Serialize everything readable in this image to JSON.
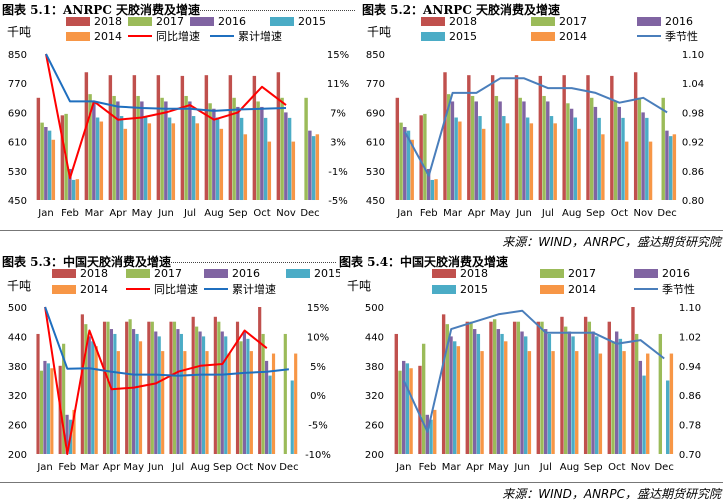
{
  "titles": {
    "c1": "图表 5.1：ANRPC 天胶消费及增速",
    "c2": "图表 5.2：ANRPC 天胶消费及增速",
    "c3": "图表 5.3：中国天胶消费及增速",
    "c4": "图表 5.4：中国天胶消费及增速"
  },
  "source": "来源：WIND，ANRPC，盛达期货研究院",
  "colors": {
    "2018": "#c0504d",
    "2017": "#9bbb59",
    "2016": "#8064a2",
    "2015": "#4bacc6",
    "2014": "#f79646",
    "yoy": "#ff0000",
    "cum": "#1f6fbf",
    "season": "#4a7ebb"
  },
  "chart_data": [
    {
      "type": "bar",
      "title": "图表 5.1：ANRPC 天胶消费及增速",
      "ylabel": "千吨",
      "categories": [
        "Jan",
        "Feb",
        "Mar",
        "Apr",
        "May",
        "Jun",
        "Jul",
        "Aug",
        "Sep",
        "Oct",
        "Nov",
        "Dec"
      ],
      "ylim": [
        450,
        850
      ],
      "yticks": [
        "450",
        "530",
        "610",
        "690",
        "770",
        "850"
      ],
      "y2lim": [
        -5,
        15
      ],
      "y2ticks": [
        "-5%",
        "-1%",
        "3%",
        "7%",
        "11%",
        "15%"
      ],
      "series": [
        {
          "name": "2018",
          "values": [
            730,
            682,
            800,
            792,
            792,
            792,
            790,
            792,
            792,
            790,
            800,
            null
          ]
        },
        {
          "name": "2017",
          "values": [
            662,
            686,
            740,
            735,
            735,
            730,
            735,
            715,
            730,
            720,
            730,
            730
          ]
        },
        {
          "name": "2016",
          "values": [
            650,
            535,
            720,
            720,
            720,
            720,
            720,
            700,
            705,
            705,
            690,
            640
          ]
        },
        {
          "name": "2015",
          "values": [
            640,
            505,
            676,
            680,
            680,
            676,
            680,
            676,
            675,
            675,
            675,
            625
          ]
        },
        {
          "name": "2014",
          "values": [
            615,
            507,
            665,
            645,
            660,
            660,
            660,
            645,
            630,
            610,
            610,
            630
          ]
        }
      ],
      "lines": [
        {
          "name": "同比增速",
          "axis": "right",
          "values": [
            15,
            -2,
            8.5,
            6,
            6.3,
            7,
            8,
            6,
            7,
            10.5,
            8,
            null
          ]
        },
        {
          "name": "累计增速",
          "axis": "right",
          "values": [
            15,
            8.5,
            8.5,
            7.8,
            7.6,
            7.5,
            7.5,
            7.2,
            7.4,
            7.5,
            7.6,
            null
          ]
        }
      ]
    },
    {
      "type": "bar",
      "title": "图表 5.2：ANRPC 天胶消费及增速",
      "ylabel": "千吨",
      "categories": [
        "Jan",
        "Feb",
        "Mar",
        "Apr",
        "May",
        "Jun",
        "Jul",
        "Aug",
        "Sep",
        "Oct",
        "Nov",
        "Dec"
      ],
      "ylim": [
        450,
        850
      ],
      "yticks": [
        "450",
        "530",
        "610",
        "690",
        "770",
        "850"
      ],
      "y2lim": [
        0.8,
        1.1
      ],
      "y2ticks": [
        "0.80",
        "0.86",
        "0.92",
        "0.98",
        "1.04",
        "1.10"
      ],
      "series": [
        {
          "name": "2018",
          "values": [
            730,
            682,
            800,
            792,
            792,
            792,
            790,
            792,
            792,
            790,
            800,
            null
          ]
        },
        {
          "name": "2017",
          "values": [
            662,
            686,
            740,
            735,
            735,
            730,
            735,
            715,
            730,
            720,
            730,
            730
          ]
        },
        {
          "name": "2016",
          "values": [
            650,
            535,
            720,
            720,
            720,
            720,
            720,
            700,
            705,
            705,
            690,
            640
          ]
        },
        {
          "name": "2015",
          "values": [
            640,
            505,
            676,
            680,
            680,
            676,
            680,
            676,
            675,
            675,
            675,
            625
          ]
        },
        {
          "name": "2014",
          "values": [
            615,
            507,
            665,
            645,
            660,
            660,
            660,
            645,
            630,
            610,
            610,
            630
          ]
        }
      ],
      "lines": [
        {
          "name": "季节性",
          "axis": "right",
          "values": [
            0.94,
            0.85,
            1.02,
            1.02,
            1.05,
            1.05,
            1.03,
            1.03,
            1.02,
            1.0,
            1.01,
            0.98
          ]
        }
      ]
    },
    {
      "type": "bar",
      "title": "图表 5.3：中国天胶消费及增速",
      "ylabel": "千吨",
      "categories": [
        "Jan",
        "Feb",
        "Mar",
        "Apr",
        "May",
        "Jun",
        "Jul",
        "Aug",
        "Sep",
        "Oct",
        "Nov",
        "Dec"
      ],
      "ylim": [
        200,
        500
      ],
      "yticks": [
        "200",
        "260",
        "320",
        "380",
        "440",
        "500"
      ],
      "y2lim": [
        -10,
        15
      ],
      "y2ticks": [
        "-10%",
        "-5%",
        "0%",
        "5%",
        "10%",
        "15%"
      ],
      "series": [
        {
          "name": "2018",
          "values": [
            445,
            380,
            485,
            470,
            470,
            470,
            470,
            480,
            480,
            470,
            500,
            null
          ]
        },
        {
          "name": "2017",
          "values": [
            370,
            425,
            465,
            470,
            475,
            470,
            470,
            460,
            470,
            430,
            445,
            445
          ]
        },
        {
          "name": "2016",
          "values": [
            390,
            280,
            440,
            455,
            455,
            450,
            455,
            450,
            450,
            450,
            390,
            null
          ]
        },
        {
          "name": "2015",
          "values": [
            385,
            270,
            430,
            445,
            445,
            440,
            445,
            440,
            440,
            435,
            360,
            350
          ]
        },
        {
          "name": "2014",
          "values": [
            375,
            290,
            420,
            410,
            430,
            410,
            410,
            410,
            405,
            410,
            405,
            405
          ]
        }
      ],
      "lines": [
        {
          "name": "同比增速",
          "axis": "right",
          "values": [
            15,
            -10,
            11,
            1,
            1.3,
            2,
            4,
            5,
            5.3,
            11,
            8,
            null
          ]
        },
        {
          "name": "累计增速",
          "axis": "right",
          "values": [
            15,
            4.5,
            4.6,
            4,
            3.5,
            3.5,
            3.3,
            3.5,
            3.5,
            3.8,
            4,
            4.4
          ]
        }
      ]
    },
    {
      "type": "bar",
      "title": "图表 5.4：中国天胶消费及增速",
      "ylabel": "千吨",
      "categories": [
        "Jan",
        "Feb",
        "Mar",
        "Apr",
        "May",
        "Jun",
        "Jul",
        "Aug",
        "Sep",
        "Oct",
        "Nov",
        "Dec"
      ],
      "ylim": [
        200,
        500
      ],
      "yticks": [
        "200",
        "260",
        "320",
        "380",
        "440",
        "500"
      ],
      "y2lim": [
        0.7,
        1.1
      ],
      "y2ticks": [
        "0.70",
        "0.78",
        "0.86",
        "0.94",
        "1.02",
        "1.10"
      ],
      "series": [
        {
          "name": "2018",
          "values": [
            445,
            380,
            485,
            470,
            470,
            470,
            470,
            480,
            480,
            470,
            500,
            null
          ]
        },
        {
          "name": "2017",
          "values": [
            370,
            425,
            465,
            470,
            475,
            470,
            470,
            460,
            470,
            430,
            445,
            445
          ]
        },
        {
          "name": "2016",
          "values": [
            390,
            280,
            440,
            455,
            455,
            450,
            455,
            450,
            450,
            450,
            390,
            null
          ]
        },
        {
          "name": "2015",
          "values": [
            385,
            270,
            430,
            445,
            445,
            440,
            445,
            440,
            440,
            435,
            360,
            350
          ]
        },
        {
          "name": "2014",
          "values": [
            375,
            290,
            420,
            410,
            430,
            410,
            410,
            410,
            405,
            410,
            405,
            405
          ]
        }
      ],
      "lines": [
        {
          "name": "季节性",
          "axis": "right",
          "values": [
            0.9,
            0.76,
            1.04,
            1.06,
            1.08,
            1.09,
            1.03,
            1.03,
            1.03,
            1.0,
            1.01,
            0.96
          ]
        }
      ]
    }
  ]
}
